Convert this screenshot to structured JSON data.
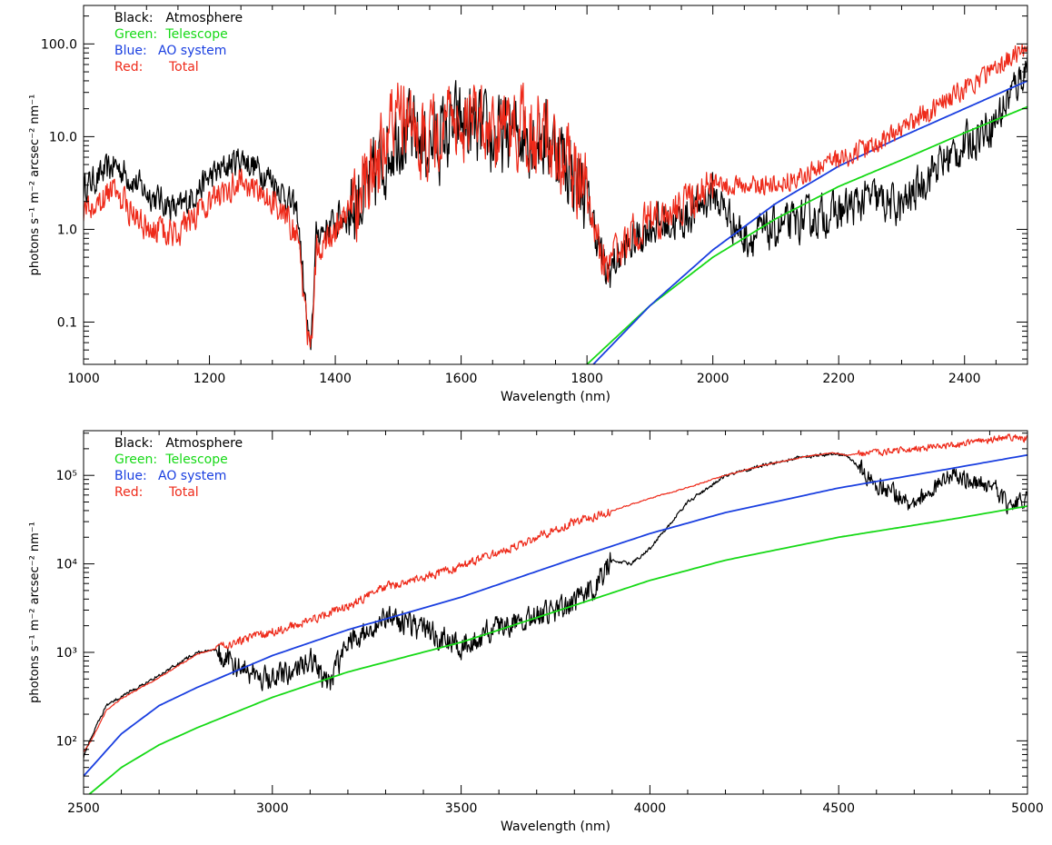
{
  "chart_data": [
    {
      "type": "line",
      "title": "",
      "xlabel": "Wavelength (nm)",
      "ylabel": "photons s⁻¹ m⁻² arcsec⁻² nm⁻¹",
      "xlim": [
        1000,
        2500
      ],
      "ylim": [
        0.035,
        260
      ],
      "yscale": "log",
      "grid": false,
      "legend_position": "top-left",
      "x_ticks": [
        1000,
        1200,
        1400,
        1600,
        1800,
        2000,
        2200,
        2400
      ],
      "x_tick_labels": [
        "1000",
        "1200",
        "1400",
        "1600",
        "1800",
        "2000",
        "2200",
        "2400"
      ],
      "y_ticks": [
        0.1,
        1,
        10,
        100
      ],
      "y_tick_labels": [
        "0.1",
        "1.0",
        "10.0",
        "100.0"
      ],
      "legend": [
        {
          "prefix": "Black:",
          "text": "Atmosphere",
          "color": "#000000"
        },
        {
          "prefix": "Green:",
          "text": "Telescope",
          "color": "#16d916"
        },
        {
          "prefix": "Blue:",
          "text": "AO system",
          "color": "#1a3fe0"
        },
        {
          "prefix": "Red:",
          "text": "Total",
          "color": "#ee2a1a"
        }
      ],
      "series": [
        {
          "name": "Atmosphere",
          "color": "#000000",
          "x": [
            1000,
            1050,
            1100,
            1150,
            1200,
            1250,
            1300,
            1340,
            1360,
            1370,
            1400,
            1450,
            1500,
            1550,
            1600,
            1650,
            1700,
            1750,
            1800,
            1830,
            1850,
            1900,
            1950,
            2000,
            2050,
            2100,
            2150,
            2200,
            2250,
            2300,
            2350,
            2400,
            2450,
            2500
          ],
          "y": [
            2.8,
            5,
            2.5,
            1.6,
            3.6,
            6,
            3.5,
            1.5,
            0.04,
            0.9,
            1.2,
            2.5,
            12,
            8,
            14,
            9,
            12,
            8,
            2.3,
            0.32,
            0.5,
            1.1,
            1.2,
            2.5,
            0.8,
            1.0,
            1.3,
            1.5,
            2.2,
            1.7,
            4.5,
            8,
            15,
            60
          ]
        },
        {
          "name": "Telescope",
          "color": "#16d916",
          "x": [
            1800,
            1900,
            2000,
            2100,
            2200,
            2300,
            2400,
            2500
          ],
          "y": [
            0.035,
            0.15,
            0.5,
            1.3,
            2.9,
            5.6,
            11,
            21
          ]
        },
        {
          "name": "AO system",
          "color": "#1a3fe0",
          "x": [
            1810,
            1900,
            2000,
            2100,
            2200,
            2300,
            2400,
            2500
          ],
          "y": [
            0.035,
            0.15,
            0.6,
            1.9,
            4.8,
            10,
            20,
            40
          ]
        },
        {
          "name": "Total",
          "color": "#ee2a1a",
          "x": [
            1000,
            1050,
            1100,
            1150,
            1200,
            1250,
            1300,
            1340,
            1360,
            1370,
            1400,
            1450,
            1500,
            1550,
            1600,
            1650,
            1700,
            1750,
            1800,
            1830,
            1850,
            1900,
            1950,
            2000,
            2050,
            2100,
            2150,
            2200,
            2250,
            2300,
            2350,
            2400,
            2450,
            2500
          ],
          "y": [
            1.6,
            2.6,
            1.0,
            0.9,
            2.0,
            3.4,
            2.0,
            0.9,
            0.04,
            0.6,
            1.0,
            3,
            16,
            9,
            15,
            10,
            13,
            8,
            2.3,
            0.35,
            0.6,
            1.3,
            1.6,
            3.2,
            2.8,
            3.2,
            4.0,
            5.5,
            8,
            12,
            20,
            32,
            55,
            90
          ]
        }
      ]
    },
    {
      "type": "line",
      "title": "",
      "xlabel": "Wavelength (nm)",
      "ylabel": "photons s⁻¹ m⁻² arcsec⁻² nm⁻¹",
      "xlim": [
        2500,
        5000
      ],
      "ylim": [
        25,
        320000
      ],
      "yscale": "log",
      "grid": false,
      "legend_position": "top-left",
      "x_ticks": [
        2500,
        3000,
        3500,
        4000,
        4500,
        5000
      ],
      "x_tick_labels": [
        "2500",
        "3000",
        "3500",
        "4000",
        "4500",
        "5000"
      ],
      "y_ticks": [
        100,
        1000,
        10000,
        100000
      ],
      "y_tick_labels": [
        "10²",
        "10³",
        "10⁴",
        "10⁵"
      ],
      "legend": [
        {
          "prefix": "Black:",
          "text": "Atmosphere",
          "color": "#000000"
        },
        {
          "prefix": "Green:",
          "text": "Telescope",
          "color": "#16d916"
        },
        {
          "prefix": "Blue:",
          "text": "AO system",
          "color": "#1a3fe0"
        },
        {
          "prefix": "Red:",
          "text": "Total",
          "color": "#ee2a1a"
        }
      ],
      "series": [
        {
          "name": "Atmosphere",
          "color": "#000000",
          "x": [
            2500,
            2520,
            2560,
            2600,
            2700,
            2800,
            2850,
            2900,
            3000,
            3100,
            3150,
            3200,
            3300,
            3400,
            3500,
            3600,
            3700,
            3800,
            3850,
            3900,
            3950,
            4000,
            4100,
            4200,
            4300,
            4400,
            4480,
            4520,
            4600,
            4700,
            4800,
            4900,
            4950,
            5000
          ],
          "y": [
            65,
            110,
            250,
            320,
            550,
            1000,
            1050,
            700,
            500,
            800,
            450,
            1200,
            2500,
            1800,
            1200,
            2000,
            2500,
            3500,
            5500,
            11000,
            10000,
            15000,
            50000,
            100000,
            130000,
            160000,
            175000,
            170000,
            80000,
            45000,
            100000,
            80000,
            45000,
            60000
          ]
        },
        {
          "name": "Telescope",
          "color": "#16d916",
          "x": [
            2500,
            2600,
            2700,
            2800,
            3000,
            3200,
            3500,
            3800,
            4000,
            4200,
            4500,
            4800,
            5000
          ],
          "y": [
            22,
            50,
            90,
            140,
            310,
            600,
            1300,
            3400,
            6500,
            11000,
            20000,
            32000,
            45000
          ]
        },
        {
          "name": "AO system",
          "color": "#1a3fe0",
          "x": [
            2500,
            2600,
            2700,
            2800,
            3000,
            3200,
            3500,
            3800,
            4000,
            4200,
            4500,
            4800,
            5000
          ],
          "y": [
            40,
            120,
            250,
            400,
            920,
            1800,
            4200,
            11500,
            22000,
            38000,
            72000,
            120000,
            170000
          ]
        },
        {
          "name": "Total",
          "color": "#ee2a1a",
          "x": [
            2500,
            2520,
            2560,
            2600,
            2700,
            2800,
            2850,
            2900,
            3000,
            3100,
            3200,
            3300,
            3400,
            3500,
            3600,
            3700,
            3800,
            3900,
            4000,
            4100,
            4200,
            4300,
            4400,
            4480,
            4520,
            4600,
            4700,
            4800,
            4900,
            4950,
            5000
          ],
          "y": [
            75,
            100,
            220,
            300,
            520,
            950,
            1100,
            1300,
            1700,
            2300,
            3300,
            5500,
            7000,
            9500,
            13500,
            20000,
            30000,
            40000,
            55000,
            73000,
            100000,
            130000,
            160000,
            180000,
            170000,
            180000,
            200000,
            220000,
            250000,
            270000,
            260000
          ]
        }
      ]
    }
  ]
}
